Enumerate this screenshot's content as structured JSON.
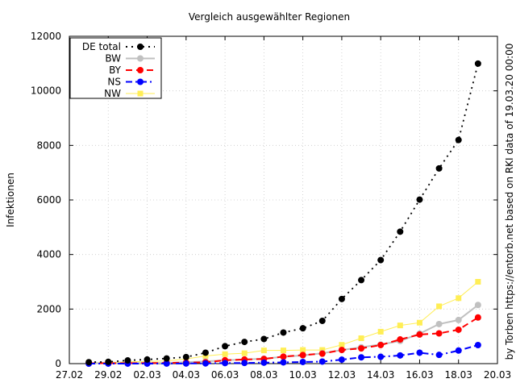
{
  "chart_data": {
    "type": "line",
    "title": "Vergleich ausgewählter Regionen",
    "xlabel": "",
    "ylabel": "Infektionen",
    "side_note": "by Torben https://entorb.net based on RKI data of 19.03.20 00:00",
    "x_ticks": [
      "27.02",
      "29.02",
      "02.03",
      "04.03",
      "06.03",
      "08.03",
      "10.03",
      "12.03",
      "14.03",
      "16.03",
      "18.03",
      "20.03"
    ],
    "y_ticks": [
      "0",
      "2000",
      "4000",
      "6000",
      "8000",
      "10000",
      "12000"
    ],
    "xlim": [
      "27.02",
      "20.03"
    ],
    "ylim": [
      0,
      12000
    ],
    "grid": true,
    "legend_position": "top-left",
    "x": [
      "28.02",
      "29.02",
      "01.03",
      "02.03",
      "03.03",
      "04.03",
      "05.03",
      "06.03",
      "07.03",
      "08.03",
      "09.03",
      "10.03",
      "11.03",
      "12.03",
      "13.03",
      "14.03",
      "15.03",
      "16.03",
      "17.03",
      "18.03",
      "18.03 12:00",
      "19.03"
    ],
    "series": [
      {
        "name": "DE total",
        "color": "#000000",
        "style": "dotted",
        "marker": "circle",
        "values": [
          53,
          66,
          117,
          150,
          188,
          240,
          400,
          639,
          795,
          902,
          1139,
          1296,
          1567,
          2369,
          3062,
          3795,
          4838,
          6012,
          7156,
          8198,
          null,
          10999
        ]
      },
      {
        "name": "BW",
        "color": "#c0c0c0",
        "style": "solid",
        "marker": "circle",
        "values": [
          14,
          15,
          19,
          20,
          28,
          50,
          80,
          120,
          150,
          180,
          250,
          300,
          380,
          500,
          600,
          700,
          830,
          1100,
          1450,
          1600,
          null,
          2150
        ]
      },
      {
        "name": "BY",
        "color": "#ff0000",
        "style": "dashed",
        "marker": "circle",
        "values": [
          14,
          15,
          19,
          20,
          26,
          35,
          48,
          125,
          150,
          170,
          256,
          314,
          366,
          500,
          558,
          681,
          886,
          1067,
          1108,
          1243,
          null,
          1692
        ]
      },
      {
        "name": "NS",
        "color": "#0000ff",
        "style": "dashdot",
        "marker": "circle",
        "values": [
          0,
          1,
          1,
          1,
          2,
          5,
          8,
          20,
          25,
          35,
          45,
          60,
          75,
          145,
          230,
          250,
          300,
          400,
          320,
          480,
          null,
          680
        ]
      },
      {
        "name": "NW",
        "color": "#ffee55",
        "style": "solid",
        "marker": "square",
        "values": [
          30,
          40,
          66,
          80,
          100,
          170,
          281,
          346,
          380,
          484,
          484,
          500,
          500,
          688,
          930,
          1170,
          1400,
          1500,
          2100,
          2400,
          null,
          3000
        ]
      }
    ]
  }
}
